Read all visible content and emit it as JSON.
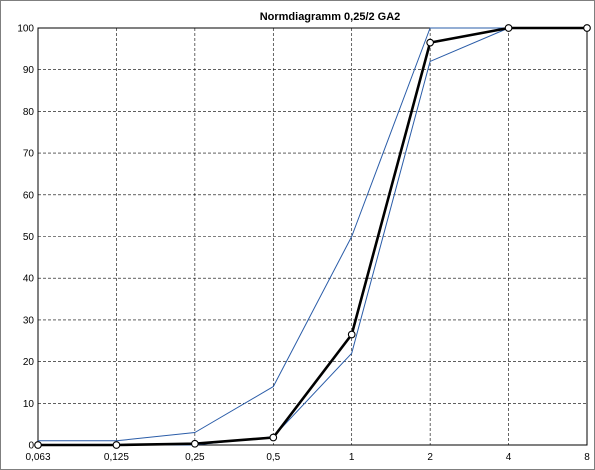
{
  "chart_data": {
    "type": "line",
    "title": "Normdiagramm 0,25/2 GA2",
    "xlabel": "",
    "ylabel": "",
    "x_scale": "log2",
    "categories": [
      "0,063",
      "0,125",
      "0,25",
      "0,5",
      "1",
      "2",
      "4",
      "8"
    ],
    "ylim": [
      0,
      100
    ],
    "yticks": [
      "0",
      "10",
      "20",
      "30",
      "40",
      "50",
      "60",
      "70",
      "80",
      "90",
      "100"
    ],
    "grid": true,
    "grid_style": "dashed",
    "legend": "none",
    "series": [
      {
        "role": "upper-limit",
        "color": "#2a5ca8",
        "markers": false,
        "values": [
          1,
          1,
          3,
          14,
          50,
          100,
          100,
          100
        ]
      },
      {
        "role": "lower-limit",
        "color": "#2a5ca8",
        "markers": false,
        "values": [
          0,
          0,
          0,
          2,
          22,
          92,
          100,
          100
        ]
      },
      {
        "role": "measured",
        "color": "#000000",
        "markers": true,
        "values": [
          0,
          0,
          0.3,
          1.8,
          26.5,
          96.5,
          100,
          100
        ]
      }
    ]
  }
}
